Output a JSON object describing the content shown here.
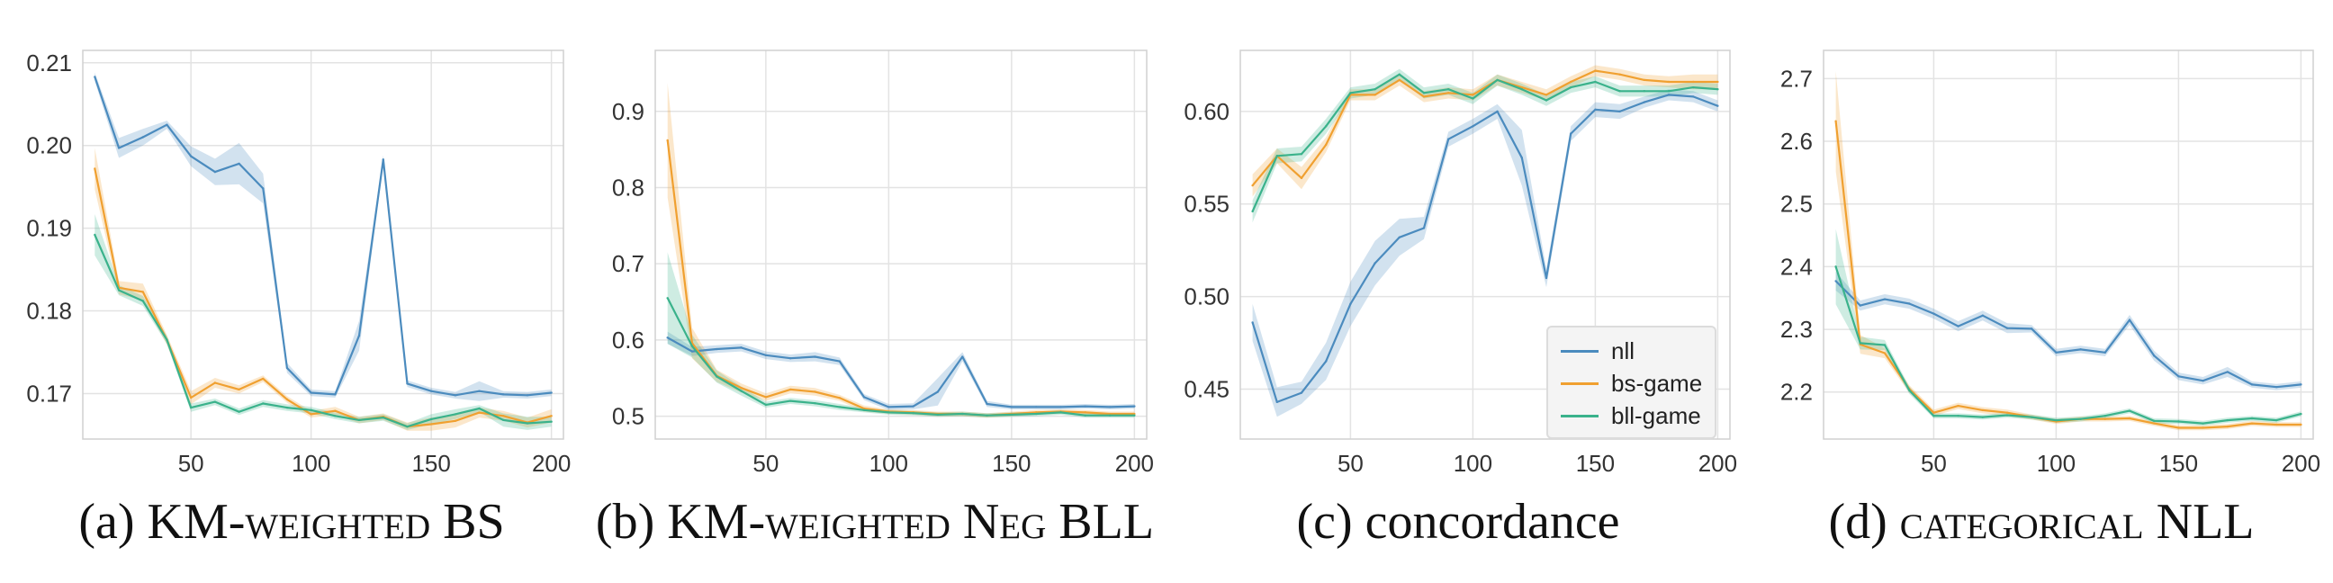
{
  "chart_data": [
    {
      "type": "line",
      "caption_letter": "(a)",
      "caption_text": "KM-weighted BS",
      "xlim": [
        5,
        205
      ],
      "ylim": [
        0.1645,
        0.2115
      ],
      "x_ticks": [
        50,
        100,
        150,
        200
      ],
      "y_ticks": [
        0.17,
        0.18,
        0.19,
        0.2,
        0.21
      ],
      "y_tick_labels": [
        "0.17",
        "0.18",
        "0.19",
        "0.20",
        "0.21"
      ],
      "x": [
        10,
        20,
        30,
        40,
        50,
        60,
        70,
        80,
        90,
        100,
        110,
        120,
        130,
        140,
        150,
        160,
        170,
        180,
        190,
        200
      ],
      "series": [
        {
          "name": "nll",
          "color": "#4b8bbe",
          "values": [
            0.2083,
            0.1997,
            0.201,
            0.2025,
            0.1987,
            0.1968,
            0.1978,
            0.1948,
            0.1731,
            0.1701,
            0.1699,
            0.177,
            0.1983,
            0.1712,
            0.1703,
            0.1698,
            0.1703,
            0.1699,
            0.1698,
            0.1701
          ],
          "band": [
            0.0005,
            0.0012,
            0.001,
            0.0005,
            0.0012,
            0.0016,
            0.0025,
            0.0018,
            0.0006,
            0.0004,
            0.0004,
            0.0018,
            0.0005,
            0.0004,
            0.0004,
            0.0004,
            0.0012,
            0.0004,
            0.0004,
            0.0004
          ]
        },
        {
          "name": "bs-game",
          "color": "#f0a030",
          "values": [
            0.1972,
            0.1828,
            0.1823,
            0.1765,
            0.1695,
            0.1713,
            0.1705,
            0.1718,
            0.1693,
            0.1675,
            0.1679,
            0.1668,
            0.1672,
            0.166,
            0.1663,
            0.1667,
            0.1677,
            0.1673,
            0.1665,
            0.1673
          ],
          "band": [
            0.0025,
            0.0008,
            0.001,
            0.0006,
            0.0008,
            0.0006,
            0.0005,
            0.0004,
            0.0004,
            0.0004,
            0.0005,
            0.0004,
            0.0004,
            0.0005,
            0.0008,
            0.0008,
            0.0006,
            0.0006,
            0.0006,
            0.0008
          ]
        },
        {
          "name": "bll-game",
          "color": "#3ab28b",
          "values": [
            0.1892,
            0.1825,
            0.1812,
            0.1765,
            0.1683,
            0.169,
            0.1678,
            0.1688,
            0.1683,
            0.168,
            0.1673,
            0.1668,
            0.1671,
            0.166,
            0.1669,
            0.1675,
            0.1682,
            0.1668,
            0.1664,
            0.1666
          ],
          "band": [
            0.0025,
            0.0006,
            0.0006,
            0.0005,
            0.0005,
            0.0004,
            0.0004,
            0.0004,
            0.0004,
            0.0004,
            0.0004,
            0.0004,
            0.0004,
            0.0004,
            0.0006,
            0.0006,
            0.0004,
            0.0008,
            0.0008,
            0.0006
          ]
        }
      ]
    },
    {
      "type": "line",
      "caption_letter": "(b)",
      "caption_text": "KM-weighted Neg BLL",
      "xlim": [
        5,
        205
      ],
      "ylim": [
        0.47,
        0.98
      ],
      "x_ticks": [
        50,
        100,
        150,
        200
      ],
      "y_ticks": [
        0.5,
        0.6,
        0.7,
        0.8,
        0.9
      ],
      "y_tick_labels": [
        "0.5",
        "0.6",
        "0.7",
        "0.8",
        "0.9"
      ],
      "x": [
        10,
        20,
        30,
        40,
        50,
        60,
        70,
        80,
        90,
        100,
        110,
        120,
        130,
        140,
        150,
        160,
        170,
        180,
        190,
        200
      ],
      "series": [
        {
          "name": "nll",
          "color": "#4b8bbe",
          "values": [
            0.603,
            0.585,
            0.588,
            0.59,
            0.58,
            0.576,
            0.578,
            0.572,
            0.525,
            0.512,
            0.513,
            0.532,
            0.578,
            0.516,
            0.512,
            0.512,
            0.512,
            0.513,
            0.512,
            0.513
          ],
          "band": [
            0.008,
            0.006,
            0.005,
            0.005,
            0.005,
            0.005,
            0.006,
            0.005,
            0.004,
            0.004,
            0.004,
            0.018,
            0.006,
            0.004,
            0.003,
            0.003,
            0.003,
            0.003,
            0.003,
            0.003
          ]
        },
        {
          "name": "bs-game",
          "color": "#f0a030",
          "values": [
            0.862,
            0.596,
            0.553,
            0.537,
            0.525,
            0.535,
            0.532,
            0.524,
            0.51,
            0.506,
            0.505,
            0.503,
            0.503,
            0.501,
            0.503,
            0.505,
            0.506,
            0.505,
            0.503,
            0.503
          ],
          "band": [
            0.075,
            0.02,
            0.008,
            0.006,
            0.005,
            0.005,
            0.005,
            0.004,
            0.004,
            0.003,
            0.003,
            0.003,
            0.003,
            0.003,
            0.003,
            0.003,
            0.003,
            0.003,
            0.003,
            0.003
          ]
        },
        {
          "name": "bll-game",
          "color": "#3ab28b",
          "values": [
            0.655,
            0.592,
            0.552,
            0.533,
            0.515,
            0.52,
            0.517,
            0.512,
            0.508,
            0.505,
            0.504,
            0.502,
            0.503,
            0.501,
            0.502,
            0.503,
            0.505,
            0.501,
            0.501,
            0.501
          ],
          "band": [
            0.06,
            0.015,
            0.008,
            0.006,
            0.004,
            0.004,
            0.004,
            0.004,
            0.003,
            0.003,
            0.003,
            0.003,
            0.003,
            0.003,
            0.003,
            0.003,
            0.003,
            0.003,
            0.003,
            0.003
          ]
        }
      ]
    },
    {
      "type": "line",
      "caption_letter": "(c)",
      "caption_text": "concordance",
      "xlim": [
        5,
        205
      ],
      "ylim": [
        0.423,
        0.633
      ],
      "x_ticks": [
        50,
        100,
        150,
        200
      ],
      "y_ticks": [
        0.45,
        0.5,
        0.55,
        0.6
      ],
      "y_tick_labels": [
        "0.45",
        "0.50",
        "0.55",
        "0.60"
      ],
      "x": [
        10,
        20,
        30,
        40,
        50,
        60,
        70,
        80,
        90,
        100,
        110,
        120,
        130,
        140,
        150,
        160,
        170,
        180,
        190,
        200
      ],
      "legend": [
        "nll",
        "bs-game",
        "bll-game"
      ],
      "series": [
        {
          "name": "nll",
          "color": "#4b8bbe",
          "values": [
            0.486,
            0.443,
            0.448,
            0.465,
            0.496,
            0.518,
            0.532,
            0.537,
            0.585,
            0.592,
            0.6,
            0.575,
            0.51,
            0.588,
            0.601,
            0.6,
            0.605,
            0.609,
            0.608,
            0.603
          ],
          "band": [
            0.01,
            0.008,
            0.006,
            0.01,
            0.012,
            0.012,
            0.01,
            0.006,
            0.004,
            0.004,
            0.004,
            0.015,
            0.005,
            0.004,
            0.004,
            0.004,
            0.003,
            0.003,
            0.003,
            0.003
          ]
        },
        {
          "name": "bs-game",
          "color": "#f0a030",
          "values": [
            0.56,
            0.576,
            0.564,
            0.582,
            0.609,
            0.609,
            0.617,
            0.608,
            0.61,
            0.609,
            0.617,
            0.613,
            0.609,
            0.616,
            0.622,
            0.62,
            0.617,
            0.616,
            0.616,
            0.616
          ],
          "band": [
            0.006,
            0.004,
            0.006,
            0.004,
            0.003,
            0.003,
            0.003,
            0.003,
            0.003,
            0.003,
            0.003,
            0.003,
            0.003,
            0.003,
            0.003,
            0.003,
            0.003,
            0.003,
            0.004,
            0.004
          ]
        },
        {
          "name": "bll-game",
          "color": "#3ab28b",
          "values": [
            0.546,
            0.576,
            0.577,
            0.592,
            0.61,
            0.612,
            0.62,
            0.61,
            0.612,
            0.607,
            0.617,
            0.612,
            0.606,
            0.613,
            0.616,
            0.611,
            0.611,
            0.611,
            0.613,
            0.612
          ],
          "band": [
            0.006,
            0.004,
            0.004,
            0.004,
            0.003,
            0.003,
            0.003,
            0.003,
            0.003,
            0.003,
            0.003,
            0.003,
            0.003,
            0.003,
            0.003,
            0.003,
            0.003,
            0.003,
            0.003,
            0.003
          ]
        }
      ]
    },
    {
      "type": "line",
      "caption_letter": "(d)",
      "caption_text": "categorical NLL",
      "xlim": [
        5,
        205
      ],
      "ylim": [
        2.125,
        2.745
      ],
      "x_ticks": [
        50,
        100,
        150,
        200
      ],
      "y_ticks": [
        2.2,
        2.3,
        2.4,
        2.5,
        2.6,
        2.7
      ],
      "y_tick_labels": [
        "2.2",
        "2.3",
        "2.4",
        "2.5",
        "2.6",
        "2.7"
      ],
      "x": [
        10,
        20,
        30,
        40,
        50,
        60,
        70,
        80,
        90,
        100,
        110,
        120,
        130,
        140,
        150,
        160,
        170,
        180,
        190,
        200
      ],
      "series": [
        {
          "name": "nll",
          "color": "#4b8bbe",
          "values": [
            2.377,
            2.338,
            2.348,
            2.341,
            2.325,
            2.305,
            2.322,
            2.302,
            2.301,
            2.263,
            2.268,
            2.263,
            2.315,
            2.258,
            2.225,
            2.218,
            2.232,
            2.212,
            2.208,
            2.212
          ],
          "band": [
            0.015,
            0.008,
            0.008,
            0.008,
            0.008,
            0.008,
            0.008,
            0.008,
            0.006,
            0.006,
            0.006,
            0.006,
            0.008,
            0.008,
            0.006,
            0.006,
            0.008,
            0.005,
            0.005,
            0.005
          ]
        },
        {
          "name": "bs-game",
          "color": "#f0a030",
          "values": [
            2.632,
            2.276,
            2.262,
            2.205,
            2.167,
            2.178,
            2.171,
            2.167,
            2.16,
            2.153,
            2.157,
            2.157,
            2.158,
            2.15,
            2.143,
            2.143,
            2.145,
            2.15,
            2.148,
            2.148
          ],
          "band": [
            0.08,
            0.015,
            0.008,
            0.006,
            0.005,
            0.005,
            0.005,
            0.005,
            0.004,
            0.004,
            0.004,
            0.004,
            0.004,
            0.004,
            0.004,
            0.004,
            0.004,
            0.004,
            0.004,
            0.004
          ]
        },
        {
          "name": "bll-game",
          "color": "#3ab28b",
          "values": [
            2.4,
            2.278,
            2.275,
            2.203,
            2.162,
            2.162,
            2.16,
            2.163,
            2.16,
            2.155,
            2.157,
            2.162,
            2.17,
            2.154,
            2.153,
            2.15,
            2.155,
            2.158,
            2.155,
            2.165
          ],
          "band": [
            0.06,
            0.01,
            0.008,
            0.006,
            0.004,
            0.004,
            0.004,
            0.004,
            0.004,
            0.004,
            0.004,
            0.004,
            0.004,
            0.004,
            0.004,
            0.004,
            0.004,
            0.004,
            0.004,
            0.004
          ]
        }
      ]
    }
  ]
}
